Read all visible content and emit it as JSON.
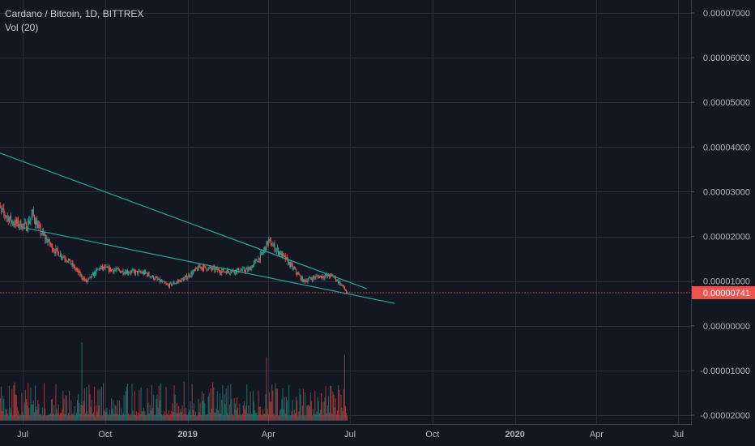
{
  "legend": {
    "title": "Cardano / Bitcoin, 1D, BITTREX",
    "indicator": "Vol (20)"
  },
  "colors": {
    "background": "#131722",
    "grid": "#2a2e39",
    "up": "#26a69a",
    "down": "#ef5350",
    "trendline": "#26a69a",
    "price_line": "#ef5350",
    "price_label_bg": "#ef5350"
  },
  "chart_data": {
    "type": "candlestick",
    "title": "Cardano / Bitcoin, 1D, BITTREX",
    "symbol": "ADA/BTC",
    "interval": "1D",
    "exchange": "BITTREX",
    "x_ticks": [
      {
        "label": "Jul",
        "date": "2018-07-01"
      },
      {
        "label": "Oct",
        "date": "2018-10-01"
      },
      {
        "label": "2019",
        "date": "2019-01-01",
        "strong": true
      },
      {
        "label": "Apr",
        "date": "2019-04-01"
      },
      {
        "label": "Jul",
        "date": "2019-07-01"
      },
      {
        "label": "Oct",
        "date": "2019-10-01"
      },
      {
        "label": "2020",
        "date": "2020-01-01",
        "strong": true
      },
      {
        "label": "Apr",
        "date": "2020-04-01"
      },
      {
        "label": "Jul",
        "date": "2020-07-01"
      }
    ],
    "y_ticks": [
      {
        "label": "0.00007000",
        "value": 7e-05
      },
      {
        "label": "0.00006000",
        "value": 6e-05
      },
      {
        "label": "0.00005000",
        "value": 5e-05
      },
      {
        "label": "0.00004000",
        "value": 4e-05
      },
      {
        "label": "0.00003000",
        "value": 3e-05
      },
      {
        "label": "0.00002000",
        "value": 2e-05
      },
      {
        "label": "0.00001000",
        "value": 1e-05
      },
      {
        "label": "0.00000000",
        "value": 0
      },
      {
        "label": "-0.00001000",
        "value": -1e-05
      },
      {
        "label": "-0.00002000",
        "value": -2e-05
      }
    ],
    "last_price": {
      "label": "0.00000741",
      "value": 7.41e-06
    },
    "price_path": [
      {
        "date": "2018-06-01",
        "value": 2.68e-05
      },
      {
        "date": "2018-06-20",
        "value": 2.32e-05
      },
      {
        "date": "2018-07-05",
        "value": 2.22e-05
      },
      {
        "date": "2018-07-12",
        "value": 2.5e-05
      },
      {
        "date": "2018-07-20",
        "value": 2.13e-05
      },
      {
        "date": "2018-08-05",
        "value": 1.7e-05
      },
      {
        "date": "2018-08-20",
        "value": 1.48e-05
      },
      {
        "date": "2018-09-10",
        "value": 9.8e-06
      },
      {
        "date": "2018-09-25",
        "value": 1.3e-05
      },
      {
        "date": "2018-10-20",
        "value": 1.22e-05
      },
      {
        "date": "2018-11-15",
        "value": 1.18e-05
      },
      {
        "date": "2018-12-10",
        "value": 9e-06
      },
      {
        "date": "2018-12-28",
        "value": 1.05e-05
      },
      {
        "date": "2019-01-15",
        "value": 1.32e-05
      },
      {
        "date": "2019-02-10",
        "value": 1.22e-05
      },
      {
        "date": "2019-03-10",
        "value": 1.25e-05
      },
      {
        "date": "2019-03-25",
        "value": 1.6e-05
      },
      {
        "date": "2019-04-01",
        "value": 1.9e-05
      },
      {
        "date": "2019-04-20",
        "value": 1.5e-05
      },
      {
        "date": "2019-05-10",
        "value": 1e-05
      },
      {
        "date": "2019-05-25",
        "value": 1.1e-05
      },
      {
        "date": "2019-06-12",
        "value": 1.12e-05
      },
      {
        "date": "2019-06-22",
        "value": 9e-06
      },
      {
        "date": "2019-06-28",
        "value": 7.4e-06
      }
    ],
    "volume_baseline": -2.12e-05,
    "volume_spikes": [
      {
        "date": "2018-09-05",
        "value": -3.7e-06
      },
      {
        "date": "2019-03-30",
        "value": -7e-06
      },
      {
        "date": "2019-06-25",
        "value": -6.5e-06
      },
      {
        "date": "2019-01-25",
        "value": -1.5e-05
      },
      {
        "date": "2019-02-25",
        "value": -1.6e-05
      },
      {
        "date": "2019-06-02",
        "value": -1.7e-05
      }
    ],
    "trendlines": [
      {
        "name": "upper",
        "start": {
          "date": "2018-06-01",
          "value": 3.9e-05
        },
        "end": {
          "date": "2019-07-20",
          "value": 8.3e-06
        }
      },
      {
        "name": "lower",
        "start": {
          "date": "2018-07-01",
          "value": 2.2e-05
        },
        "end": {
          "date": "2019-08-20",
          "value": 5e-06
        }
      }
    ]
  }
}
